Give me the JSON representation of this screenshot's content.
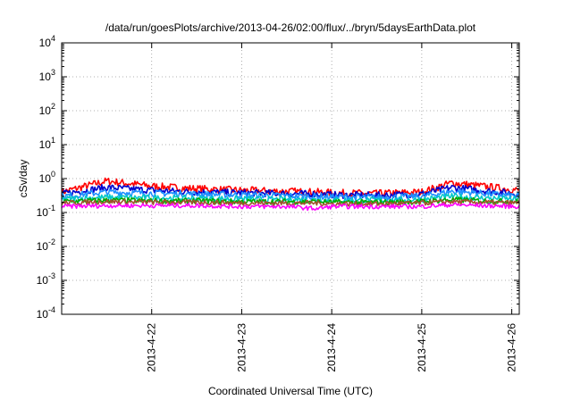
{
  "chart_data": {
    "type": "line",
    "title": "/data/run/goesPlots/archive/2013-04-26/02:00/flux/../bryn/5daysEarthData.plot",
    "xlabel": "Coordinated Universal Time (UTC)",
    "ylabel": "cSv/day",
    "yscale": "log",
    "ylim": [
      0.0001,
      10000
    ],
    "xlim": [
      "2013-04-21 00:00",
      "2013-04-26 02:00"
    ],
    "grid": true,
    "yticks": [
      {
        "base": "10",
        "exp": "-4",
        "value": 0.0001
      },
      {
        "base": "10",
        "exp": "-3",
        "value": 0.001
      },
      {
        "base": "10",
        "exp": "-2",
        "value": 0.01
      },
      {
        "base": "10",
        "exp": "-1",
        "value": 0.1
      },
      {
        "base": "10",
        "exp": "0",
        "value": 1
      },
      {
        "base": "10",
        "exp": "1",
        "value": 10
      },
      {
        "base": "10",
        "exp": "2",
        "value": 100
      },
      {
        "base": "10",
        "exp": "3",
        "value": 1000
      },
      {
        "base": "10",
        "exp": "4",
        "value": 10000
      }
    ],
    "xticks": [
      {
        "label": "2013-4-22",
        "value": "2013-04-22"
      },
      {
        "label": "2013-4-23",
        "value": "2013-04-23"
      },
      {
        "label": "2013-4-24",
        "value": "2013-04-24"
      },
      {
        "label": "2013-4-25",
        "value": "2013-04-25"
      },
      {
        "label": "2013-4-26",
        "value": "2013-04-26"
      }
    ],
    "x": [
      "2013-04-21 00:00",
      "2013-04-21 12:00",
      "2013-04-22 00:00",
      "2013-04-22 12:00",
      "2013-04-23 00:00",
      "2013-04-23 12:00",
      "2013-04-23 20:00",
      "2013-04-24 00:00",
      "2013-04-24 12:00",
      "2013-04-25 00:00",
      "2013-04-25 08:00",
      "2013-04-25 16:00",
      "2013-04-26 02:00"
    ],
    "series": [
      {
        "color": "#ff0000",
        "values": [
          0.4,
          0.85,
          0.6,
          0.5,
          0.45,
          0.42,
          0.4,
          0.38,
          0.36,
          0.4,
          0.75,
          0.6,
          0.45
        ]
      },
      {
        "color": "#0000cc",
        "values": [
          0.35,
          0.55,
          0.45,
          0.4,
          0.38,
          0.36,
          0.35,
          0.33,
          0.32,
          0.35,
          0.55,
          0.45,
          0.35
        ]
      },
      {
        "color": "#1e90ff",
        "values": [
          0.3,
          0.4,
          0.37,
          0.35,
          0.33,
          0.31,
          0.3,
          0.29,
          0.28,
          0.3,
          0.42,
          0.37,
          0.3
        ]
      },
      {
        "color": "#00c8c8",
        "values": [
          0.25,
          0.28,
          0.27,
          0.26,
          0.25,
          0.24,
          0.24,
          0.23,
          0.23,
          0.24,
          0.3,
          0.27,
          0.24
        ]
      },
      {
        "color": "#00aa00",
        "values": [
          0.21,
          0.23,
          0.22,
          0.22,
          0.21,
          0.21,
          0.21,
          0.2,
          0.2,
          0.21,
          0.24,
          0.22,
          0.21
        ]
      },
      {
        "color": "#a0522d",
        "values": [
          0.19,
          0.21,
          0.2,
          0.2,
          0.19,
          0.19,
          0.19,
          0.18,
          0.18,
          0.19,
          0.21,
          0.2,
          0.19
        ]
      },
      {
        "color": "#ff00ff",
        "values": [
          0.15,
          0.16,
          0.16,
          0.16,
          0.15,
          0.15,
          0.13,
          0.15,
          0.15,
          0.15,
          0.17,
          0.16,
          0.15
        ]
      }
    ]
  }
}
